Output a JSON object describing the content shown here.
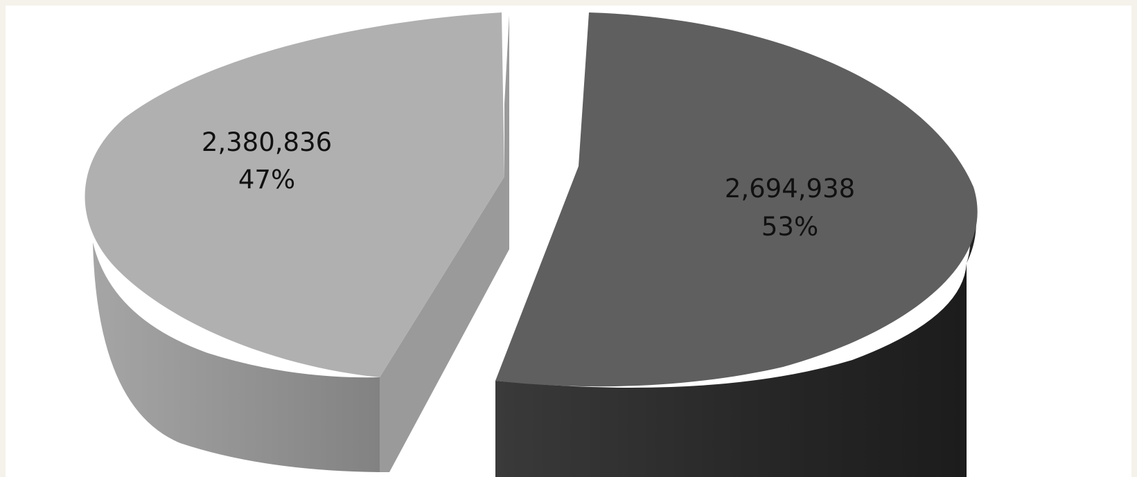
{
  "chart_data": {
    "type": "pie",
    "style": "3d-exploded",
    "slices": [
      {
        "value": 2694938,
        "value_label": "2,694,938",
        "percent_label": "53%",
        "color": "#5f5f5f",
        "side_color": "#2e2e2e"
      },
      {
        "value": 2380836,
        "value_label": "2,380,836",
        "percent_label": "47%",
        "color": "#b0b0b0",
        "side_color": "#8e8e8e"
      }
    ]
  }
}
